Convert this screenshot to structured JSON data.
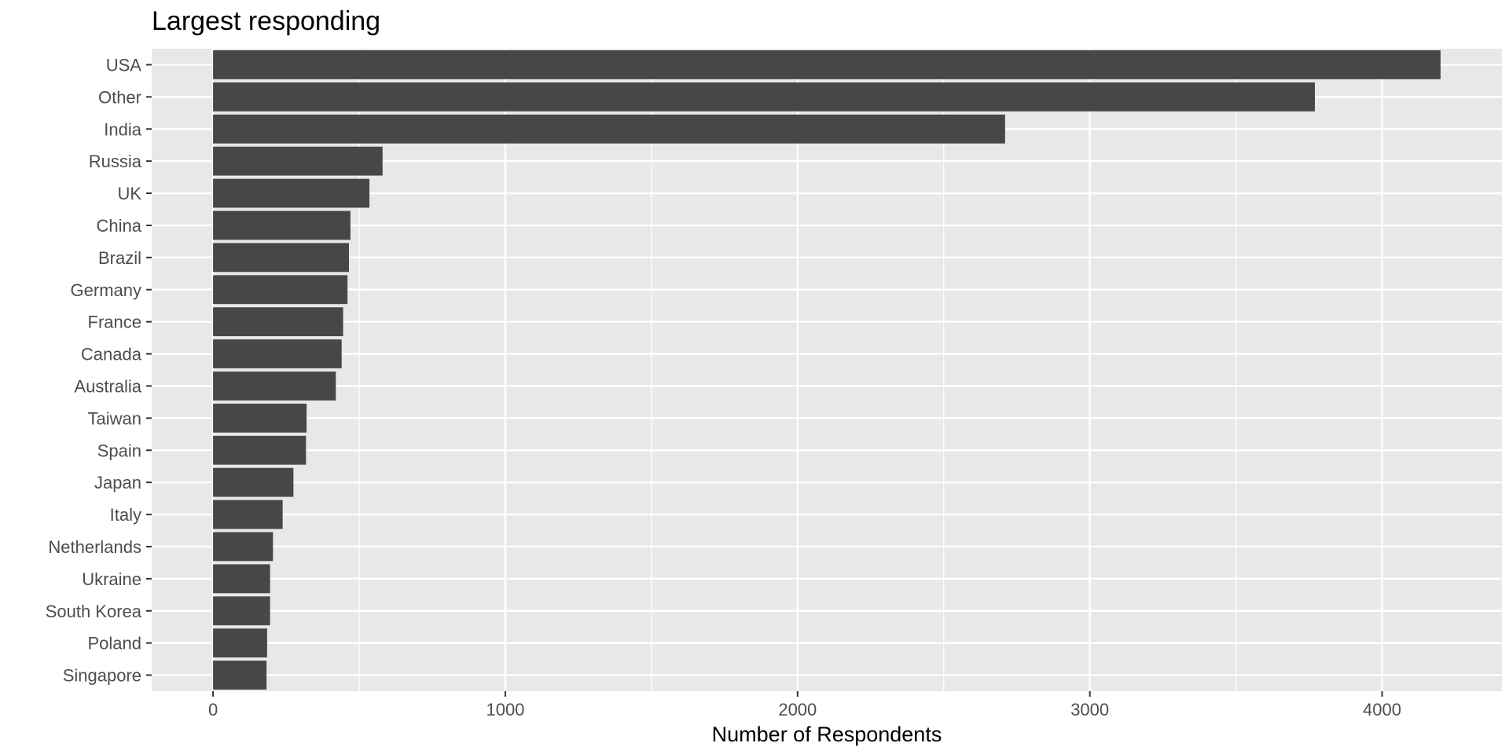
{
  "chart_data": {
    "type": "bar",
    "orientation": "horizontal",
    "title": "Largest responding",
    "xlabel": "Number of Respondents",
    "ylabel": "",
    "categories": [
      "USA",
      "Other",
      "India",
      "Russia",
      "UK",
      "China",
      "Brazil",
      "Germany",
      "France",
      "Canada",
      "Australia",
      "Taiwan",
      "Spain",
      "Japan",
      "Italy",
      "Netherlands",
      "Ukraine",
      "South Korea",
      "Poland",
      "Singapore"
    ],
    "values": [
      4200,
      3770,
      2710,
      580,
      535,
      470,
      465,
      460,
      445,
      440,
      420,
      320,
      318,
      275,
      238,
      205,
      195,
      195,
      185,
      183
    ],
    "xlim": [
      -210,
      4410
    ],
    "xticks": [
      0,
      1000,
      2000,
      3000,
      4000
    ],
    "xtick_labels": [
      "0",
      "1000",
      "2000",
      "3000",
      "4000"
    ],
    "grid": true,
    "legend": "none",
    "colors": {
      "bar": "#474747",
      "panel": "#e8e8e8",
      "grid": "#ffffff",
      "tick": "#333333"
    }
  }
}
